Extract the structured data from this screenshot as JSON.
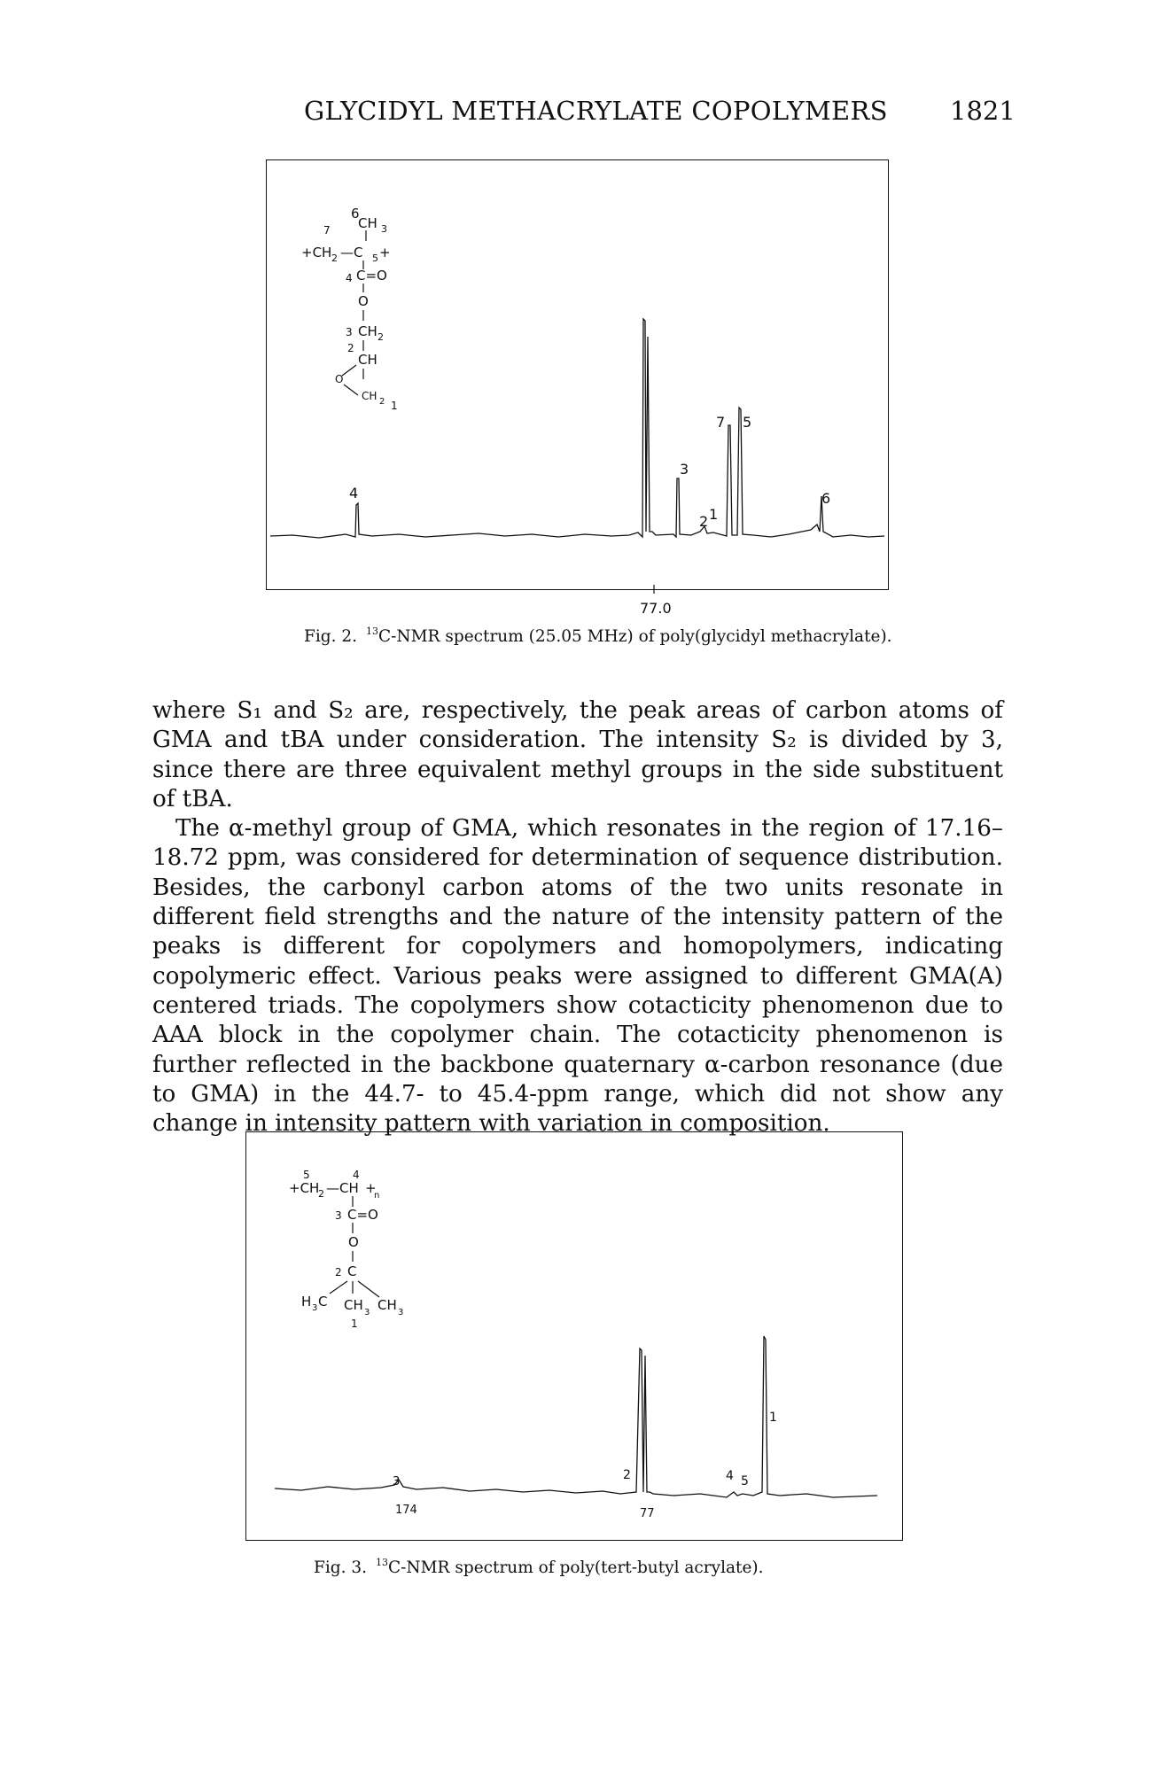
{
  "header": {
    "title": "GLYCIDYL METHACRYLATE COPOLYMERS",
    "page_number": "1821"
  },
  "figure2": {
    "caption_number": "Fig. 2.",
    "caption_sup": "13",
    "caption_text": "C-NMR spectrum (25.05 MHz) of poly(glycidyl methacrylate).",
    "axis_label": "77.0",
    "structure": {
      "l1": "6",
      "l2": "CH",
      "l3": "3",
      "l4": "7",
      "l5": "+CH",
      "l6": "2",
      "l7": "—C",
      "l8": "5",
      "l9": "+",
      "l10": "4",
      "l11": "C=O",
      "l12": "O",
      "l13": "3",
      "l14": "CH",
      "l15": "2",
      "l16": "2",
      "l17": "CH",
      "l18": "O",
      "l19": "CH",
      "l20": "2",
      "l21": "1"
    },
    "peak_labels": [
      "4",
      "3",
      "2",
      "1",
      "7",
      "5",
      "6"
    ]
  },
  "body": {
    "p1": "where S₁ and S₂ are, respectively, the peak areas of carbon atoms of GMA and tBA under consideration. The intensity S₂ is divided by 3, since there are three equivalent methyl groups in the side substituent of tBA.",
    "p2": "The α-methyl group of GMA, which resonates in the region of 17.16–18.72 ppm, was considered for determination of sequence distribution. Besides, the carbonyl carbon atoms of the two units resonate in different field strengths and the nature of the intensity pattern of the peaks is different for copolymers and homopolymers, indicating copolymeric effect. Various peaks were assigned to different GMA(A) centered triads. The copolymers show cotacticity phenomenon due to AAA block in the copolymer chain. The cotacticity phenomenon is further reflected in the backbone quaternary α-carbon resonance (due to GMA) in the 44.7- to 45.4-ppm range, which did not show any change in intensity pattern with variation in composition."
  },
  "figure3": {
    "caption_number": "Fig. 3.",
    "caption_sup": "13",
    "caption_text": "C-NMR spectrum of poly(tert-butyl acrylate).",
    "axis_labels": [
      "174",
      "77"
    ],
    "structure": {
      "l1": "5",
      "l2": "4",
      "l3": "+CH",
      "l4": "2",
      "l5": "—CH",
      "l6": "+",
      "l7": "n",
      "l8": "3",
      "l9": "C=O",
      "l10": "O",
      "l11": "2",
      "l12": "C",
      "l13": "H",
      "l14": "3",
      "l15": "C",
      "l16": "CH",
      "l17": "3",
      "l18": "CH",
      "l19": "3",
      "l20": "1"
    },
    "peak_labels": [
      "3",
      "2",
      "4",
      "5",
      "1"
    ]
  }
}
